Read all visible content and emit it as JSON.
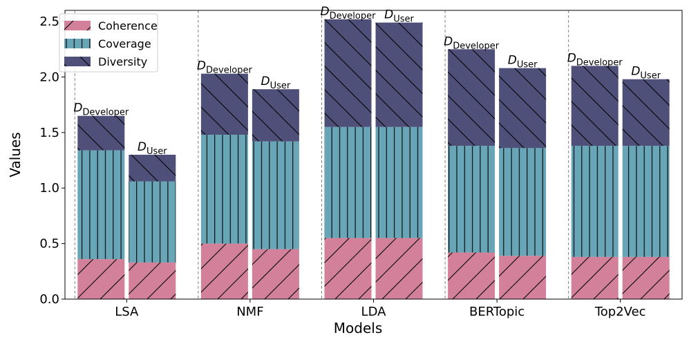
{
  "chart_data": {
    "type": "bar",
    "stacked": true,
    "title": "",
    "xlabel": "Models",
    "ylabel": "Values",
    "ylim": [
      0,
      2.6
    ],
    "yticks": [
      "0.0",
      "0.5",
      "1.0",
      "1.5",
      "2.0",
      "2.5"
    ],
    "grid": false,
    "legend_position": "top-left",
    "categories": [
      "LSA",
      "NMF",
      "LDA",
      "BERTopic",
      "Top2Vec"
    ],
    "bar_groups": [
      "Developer",
      "User"
    ],
    "bar_label_prefix": "D",
    "stack_order": [
      "Coherence",
      "Coverage",
      "Diversity"
    ],
    "series": [
      {
        "name": "Coherence",
        "color": "#d3819a",
        "hatch": "diagonal-forward",
        "Developer": [
          0.36,
          0.5,
          0.55,
          0.42,
          0.38
        ],
        "User": [
          0.33,
          0.45,
          0.55,
          0.39,
          0.38
        ]
      },
      {
        "name": "Coverage",
        "color": "#67a5b7",
        "hatch": "vertical",
        "Developer": [
          0.98,
          0.98,
          1.0,
          0.96,
          1.0
        ],
        "User": [
          0.73,
          0.97,
          1.0,
          0.97,
          1.0
        ]
      },
      {
        "name": "Diversity",
        "color": "#4f5079",
        "hatch": "diagonal-back",
        "Developer": [
          0.31,
          0.55,
          0.97,
          0.87,
          0.72
        ],
        "User": [
          0.24,
          0.47,
          0.94,
          0.72,
          0.6
        ]
      }
    ]
  }
}
